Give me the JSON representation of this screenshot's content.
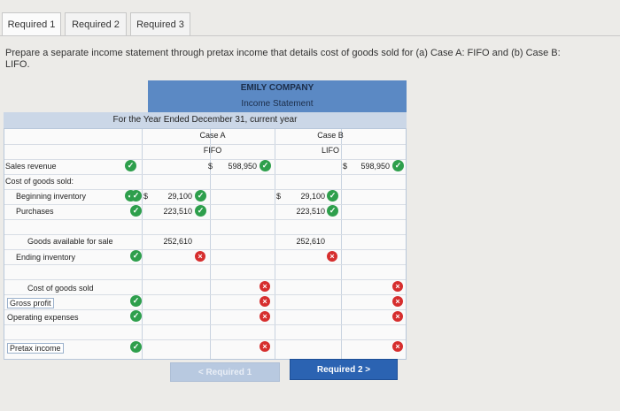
{
  "tabs": [
    {
      "label": "Required 1"
    },
    {
      "label": "Required 2"
    },
    {
      "label": "Required 3"
    }
  ],
  "instructions": "Prepare a separate income statement through pretax income that details cost of goods sold for (a) Case A: FIFO and (b) Case B: LIFO.",
  "header": {
    "company": "EMILY COMPANY",
    "statement": "Income Statement",
    "period": "For the Year Ended December 31, current year",
    "caseA": "Case A",
    "caseA_method": "FIFO",
    "caseB": "Case B",
    "caseB_method": "LIFO"
  },
  "rows": {
    "sales_revenue": "Sales revenue",
    "cogs_heading": "Cost of goods sold:",
    "beginning_inventory": "Beginning inventory",
    "purchases": "Purchases",
    "goods_available": "Goods available for sale",
    "ending_inventory": "Ending inventory",
    "cost_of_goods_sold": "Cost of goods sold",
    "gross_profit": "Gross profit",
    "operating_expenses": "Operating expenses",
    "pretax_income": "Pretax income"
  },
  "caseA": {
    "sales_dollar": "$",
    "sales": "598,950",
    "beg_dollar": "$",
    "beginning_inventory": "29,100",
    "purchases": "223,510",
    "goods_available": "252,610"
  },
  "caseB": {
    "sales_dollar": "$",
    "sales": "598,950",
    "beg_dollar": "$",
    "beginning_inventory": "29,100",
    "purchases": "223,510",
    "goods_available": "252,610"
  },
  "nav": {
    "prev_label": "< Required 1",
    "next_label": "Required 2  >"
  },
  "colors": {
    "header_blue": "#5b89c4",
    "check_green": "#2e9f4c",
    "error_red": "#d62e2e",
    "next_button": "#2b63b2"
  }
}
